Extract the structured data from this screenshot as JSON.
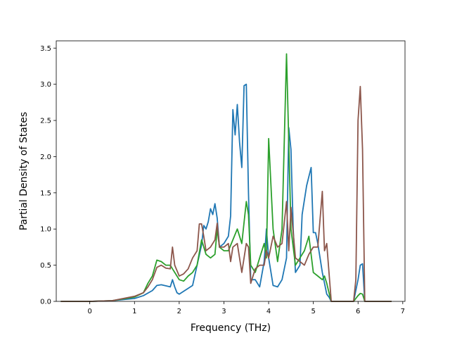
{
  "chart_data": {
    "type": "line",
    "title": "",
    "xlabel": "Frequency (THz)",
    "ylabel": "Partial Density of States",
    "xlim": [
      -0.75,
      7.05
    ],
    "ylim": [
      0,
      3.6
    ],
    "x_ticks": [
      0,
      1,
      2,
      3,
      4,
      5,
      6,
      7
    ],
    "y_ticks": [
      0.0,
      0.5,
      1.0,
      1.5,
      2.0,
      2.5,
      3.0,
      3.5
    ],
    "x_tick_labels": [
      "0",
      "1",
      "2",
      "3",
      "4",
      "5",
      "6",
      "7"
    ],
    "y_tick_labels": [
      "0.0",
      "0.5",
      "1.0",
      "1.5",
      "2.0",
      "2.5",
      "3.0",
      "3.5"
    ],
    "grid": false,
    "legend": "none",
    "series": [
      {
        "color": "#1f77b4",
        "points": [
          [
            -0.65,
            0
          ],
          [
            0,
            0
          ],
          [
            0.5,
            0.01
          ],
          [
            1.0,
            0.04
          ],
          [
            1.2,
            0.08
          ],
          [
            1.4,
            0.15
          ],
          [
            1.5,
            0.22
          ],
          [
            1.6,
            0.23
          ],
          [
            1.8,
            0.2
          ],
          [
            1.85,
            0.3
          ],
          [
            1.9,
            0.2
          ],
          [
            1.95,
            0.12
          ],
          [
            2.0,
            0.1
          ],
          [
            2.1,
            0.14
          ],
          [
            2.2,
            0.18
          ],
          [
            2.3,
            0.22
          ],
          [
            2.4,
            0.5
          ],
          [
            2.5,
            0.78
          ],
          [
            2.55,
            1.05
          ],
          [
            2.6,
            1.0
          ],
          [
            2.65,
            1.1
          ],
          [
            2.7,
            1.28
          ],
          [
            2.75,
            1.2
          ],
          [
            2.8,
            1.35
          ],
          [
            2.85,
            1.15
          ],
          [
            2.9,
            0.75
          ],
          [
            3.0,
            0.8
          ],
          [
            3.1,
            0.9
          ],
          [
            3.15,
            1.18
          ],
          [
            3.2,
            2.65
          ],
          [
            3.25,
            2.3
          ],
          [
            3.3,
            2.72
          ],
          [
            3.35,
            2.2
          ],
          [
            3.4,
            1.85
          ],
          [
            3.45,
            2.98
          ],
          [
            3.5,
            3.0
          ],
          [
            3.55,
            1.5
          ],
          [
            3.6,
            0.3
          ],
          [
            3.7,
            0.3
          ],
          [
            3.8,
            0.2
          ],
          [
            3.9,
            0.55
          ],
          [
            3.95,
            1.0
          ],
          [
            4.0,
            0.6
          ],
          [
            4.1,
            0.22
          ],
          [
            4.2,
            0.2
          ],
          [
            4.3,
            0.3
          ],
          [
            4.4,
            0.6
          ],
          [
            4.45,
            2.4
          ],
          [
            4.5,
            2.1
          ],
          [
            4.55,
            1.0
          ],
          [
            4.6,
            0.4
          ],
          [
            4.7,
            0.5
          ],
          [
            4.75,
            1.2
          ],
          [
            4.85,
            1.6
          ],
          [
            4.95,
            1.85
          ],
          [
            5.0,
            0.95
          ],
          [
            5.05,
            0.95
          ],
          [
            5.1,
            0.8
          ],
          [
            5.2,
            0.4
          ],
          [
            5.3,
            0.1
          ],
          [
            5.35,
            0.06
          ],
          [
            5.4,
            0
          ],
          [
            5.9,
            0
          ],
          [
            6.0,
            0.3
          ],
          [
            6.05,
            0.5
          ],
          [
            6.1,
            0.52
          ],
          [
            6.15,
            0
          ],
          [
            6.75,
            0
          ]
        ]
      },
      {
        "color": "#2ca02c",
        "points": [
          [
            -0.65,
            0
          ],
          [
            0,
            0
          ],
          [
            0.5,
            0.01
          ],
          [
            1.0,
            0.06
          ],
          [
            1.2,
            0.12
          ],
          [
            1.3,
            0.25
          ],
          [
            1.4,
            0.35
          ],
          [
            1.5,
            0.57
          ],
          [
            1.6,
            0.55
          ],
          [
            1.7,
            0.5
          ],
          [
            1.8,
            0.5
          ],
          [
            1.85,
            0.45
          ],
          [
            1.9,
            0.4
          ],
          [
            2.0,
            0.3
          ],
          [
            2.1,
            0.28
          ],
          [
            2.2,
            0.35
          ],
          [
            2.3,
            0.4
          ],
          [
            2.4,
            0.5
          ],
          [
            2.5,
            0.85
          ],
          [
            2.6,
            0.65
          ],
          [
            2.7,
            0.6
          ],
          [
            2.8,
            0.65
          ],
          [
            2.85,
            1.0
          ],
          [
            2.9,
            0.75
          ],
          [
            3.0,
            0.7
          ],
          [
            3.1,
            0.7
          ],
          [
            3.2,
            0.85
          ],
          [
            3.3,
            1.0
          ],
          [
            3.4,
            0.8
          ],
          [
            3.5,
            1.38
          ],
          [
            3.55,
            1.2
          ],
          [
            3.6,
            0.5
          ],
          [
            3.7,
            0.4
          ],
          [
            3.8,
            0.6
          ],
          [
            3.9,
            0.8
          ],
          [
            3.95,
            0.6
          ],
          [
            4.0,
            2.25
          ],
          [
            4.1,
            1.0
          ],
          [
            4.2,
            0.55
          ],
          [
            4.3,
            1.0
          ],
          [
            4.4,
            3.42
          ],
          [
            4.45,
            2.2
          ],
          [
            4.5,
            1.0
          ],
          [
            4.6,
            0.5
          ],
          [
            4.7,
            0.6
          ],
          [
            4.8,
            0.7
          ],
          [
            4.9,
            0.9
          ],
          [
            5.0,
            0.4
          ],
          [
            5.1,
            0.35
          ],
          [
            5.2,
            0.3
          ],
          [
            5.25,
            0.35
          ],
          [
            5.3,
            0.25
          ],
          [
            5.35,
            0.12
          ],
          [
            5.4,
            0
          ],
          [
            5.9,
            0
          ],
          [
            6.0,
            0.08
          ],
          [
            6.05,
            0.11
          ],
          [
            6.1,
            0.1
          ],
          [
            6.15,
            0
          ],
          [
            6.75,
            0
          ]
        ]
      },
      {
        "color": "#8c564b",
        "points": [
          [
            -0.65,
            0
          ],
          [
            0,
            0
          ],
          [
            0.5,
            0.01
          ],
          [
            1.0,
            0.07
          ],
          [
            1.2,
            0.12
          ],
          [
            1.3,
            0.2
          ],
          [
            1.4,
            0.3
          ],
          [
            1.5,
            0.47
          ],
          [
            1.6,
            0.5
          ],
          [
            1.7,
            0.46
          ],
          [
            1.8,
            0.45
          ],
          [
            1.85,
            0.75
          ],
          [
            1.9,
            0.5
          ],
          [
            2.0,
            0.35
          ],
          [
            2.1,
            0.38
          ],
          [
            2.2,
            0.45
          ],
          [
            2.3,
            0.6
          ],
          [
            2.4,
            0.7
          ],
          [
            2.45,
            1.07
          ],
          [
            2.5,
            1.07
          ],
          [
            2.55,
            0.9
          ],
          [
            2.6,
            0.7
          ],
          [
            2.7,
            0.75
          ],
          [
            2.8,
            0.85
          ],
          [
            2.85,
            1.08
          ],
          [
            2.9,
            0.75
          ],
          [
            3.0,
            0.75
          ],
          [
            3.1,
            0.8
          ],
          [
            3.15,
            0.55
          ],
          [
            3.2,
            0.75
          ],
          [
            3.3,
            0.8
          ],
          [
            3.4,
            0.4
          ],
          [
            3.5,
            0.8
          ],
          [
            3.55,
            0.75
          ],
          [
            3.6,
            0.25
          ],
          [
            3.7,
            0.45
          ],
          [
            3.8,
            0.5
          ],
          [
            3.9,
            0.5
          ],
          [
            3.95,
            0.7
          ],
          [
            4.0,
            0.6
          ],
          [
            4.1,
            0.9
          ],
          [
            4.2,
            0.75
          ],
          [
            4.3,
            0.8
          ],
          [
            4.4,
            1.38
          ],
          [
            4.45,
            0.7
          ],
          [
            4.5,
            1.3
          ],
          [
            4.6,
            0.6
          ],
          [
            4.7,
            0.55
          ],
          [
            4.8,
            0.5
          ],
          [
            4.9,
            0.65
          ],
          [
            5.0,
            0.75
          ],
          [
            5.1,
            0.75
          ],
          [
            5.2,
            1.52
          ],
          [
            5.25,
            0.7
          ],
          [
            5.3,
            0.8
          ],
          [
            5.35,
            0.4
          ],
          [
            5.4,
            0
          ],
          [
            5.9,
            0
          ],
          [
            5.95,
            0.3
          ],
          [
            6.0,
            2.5
          ],
          [
            6.05,
            2.97
          ],
          [
            6.1,
            2.1
          ],
          [
            6.15,
            0
          ],
          [
            6.75,
            0
          ]
        ]
      }
    ]
  }
}
